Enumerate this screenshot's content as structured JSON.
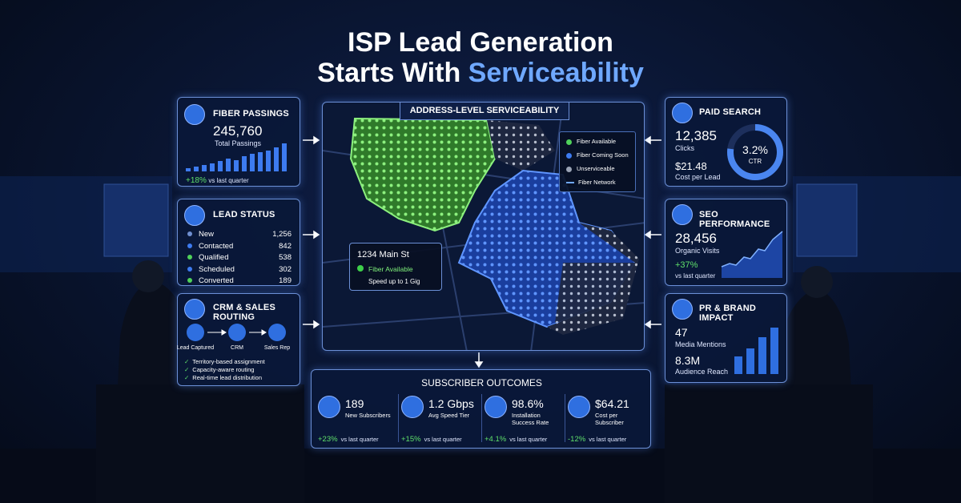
{
  "header": {
    "title_line1": "ISP Lead Generation",
    "title_line2_prefix": "Starts With",
    "title_line2_highlight": "Serviceability"
  },
  "fiber_passings": {
    "title": "FIBER PASSINGS",
    "value": "245,760",
    "label": "Total Passings",
    "change": "+18%",
    "change_label": "vs last quarter"
  },
  "lead_status": {
    "title": "LEAD STATUS",
    "rows": [
      {
        "label": "New",
        "value": "1,256"
      },
      {
        "label": "Contacted",
        "value": "842"
      },
      {
        "label": "Qualified",
        "value": "538"
      },
      {
        "label": "Scheduled",
        "value": "302"
      },
      {
        "label": "Converted",
        "value": "189"
      }
    ]
  },
  "crm_routing": {
    "title": "CRM & SALES ROUTING",
    "steps": [
      "Lead Captured",
      "CRM",
      "Sales Rep"
    ],
    "checks": [
      "Territory-based assignment",
      "Capacity-aware routing",
      "Real-time lead distribution"
    ]
  },
  "map": {
    "title": "ADDRESS-LEVEL SERVICEABILITY",
    "legend": [
      "Fiber Available",
      "Fiber Coming Soon",
      "Unserviceable",
      "Fiber Network"
    ],
    "popup": {
      "address": "1234 Main St",
      "status": "Fiber Available",
      "speed": "Speed up to 1 Gig"
    }
  },
  "paid_search": {
    "title": "PAID SEARCH",
    "clicks": "12,385",
    "clicks_label": "Clicks",
    "cpl": "$21.48",
    "cpl_label": "Cost per Lead",
    "ctr": "3.2%",
    "ctr_label": "CTR"
  },
  "seo": {
    "title": "SEO PERFORMANCE",
    "value": "28,456",
    "label": "Organic Visits",
    "change": "+37%",
    "change_label": "vs last quarter"
  },
  "pr": {
    "title": "PR & BRAND IMPACT",
    "mentions": "47",
    "mentions_label": "Media Mentions",
    "reach": "8.3M",
    "reach_label": "Audience Reach"
  },
  "outcomes": {
    "title": "SUBSCRIBER OUTCOMES",
    "items": [
      {
        "value": "189",
        "label": "New Subscribers",
        "change": "+23%",
        "change_label": "vs last quarter"
      },
      {
        "value": "1.2 Gbps",
        "label": "Avg Speed Tier",
        "change": "+15%",
        "change_label": "vs last quarter"
      },
      {
        "value": "98.6%",
        "label": "Installation Success Rate",
        "change": "+4.1%",
        "change_label": "vs last quarter"
      },
      {
        "value": "$64.21",
        "label": "Cost per Subscriber",
        "change": "-12%",
        "change_label": "vs last quarter"
      }
    ]
  }
}
